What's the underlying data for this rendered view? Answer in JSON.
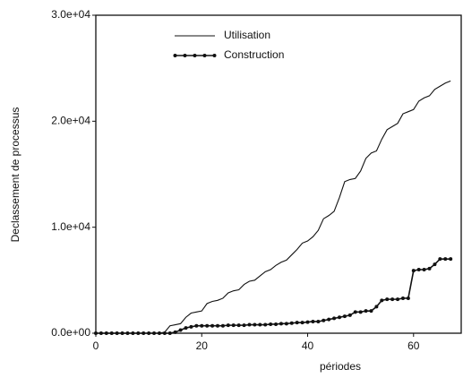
{
  "chart_data": {
    "type": "line",
    "xlabel": "périodes",
    "ylabel": "Declassement de processus",
    "x": [
      0,
      1,
      2,
      3,
      4,
      5,
      6,
      7,
      8,
      9,
      10,
      11,
      12,
      13,
      14,
      15,
      16,
      17,
      18,
      19,
      20,
      21,
      22,
      23,
      24,
      25,
      26,
      27,
      28,
      29,
      30,
      31,
      32,
      33,
      34,
      35,
      36,
      37,
      38,
      39,
      40,
      41,
      42,
      43,
      44,
      45,
      46,
      47,
      48,
      49,
      50,
      51,
      52,
      53,
      54,
      55,
      56,
      57,
      58,
      59,
      60,
      61,
      62,
      63,
      64,
      65,
      66,
      67
    ],
    "series": [
      {
        "name": "Utilisation",
        "color": "#111111",
        "markers": false,
        "values": [
          0,
          0,
          0,
          0,
          0,
          0,
          0,
          0,
          0,
          0,
          0,
          0,
          0,
          100,
          700,
          800,
          900,
          1500,
          1900,
          2000,
          2100,
          2800,
          3000,
          3100,
          3300,
          3800,
          4000,
          4100,
          4600,
          4900,
          5000,
          5400,
          5800,
          6000,
          6400,
          6700,
          6900,
          7400,
          7900,
          8500,
          8700,
          9100,
          9700,
          10800,
          11100,
          11500,
          12800,
          14300,
          14500,
          14600,
          15300,
          16500,
          17000,
          17200,
          18300,
          19200,
          19500,
          19800,
          20700,
          20900,
          21100,
          21900,
          22200,
          22400,
          23000,
          23300,
          23600,
          23800
        ]
      },
      {
        "name": "Construction",
        "color": "#111111",
        "markers": true,
        "values": [
          0,
          0,
          0,
          0,
          0,
          0,
          0,
          0,
          0,
          0,
          0,
          0,
          0,
          0,
          0,
          100,
          300,
          500,
          600,
          700,
          700,
          700,
          700,
          700,
          700,
          750,
          750,
          750,
          750,
          800,
          800,
          800,
          800,
          850,
          850,
          900,
          900,
          950,
          1000,
          1000,
          1050,
          1100,
          1100,
          1200,
          1300,
          1400,
          1500,
          1600,
          1700,
          2000,
          2000,
          2100,
          2100,
          2500,
          3100,
          3200,
          3200,
          3200,
          3300,
          3300,
          5900,
          6000,
          6000,
          6100,
          6500,
          7000,
          7000,
          7000
        ]
      }
    ],
    "xlim": [
      0,
      69
    ],
    "ylim": [
      0,
      30000
    ],
    "xticks": [
      0,
      20,
      40,
      60
    ],
    "yticks": [
      {
        "value": 0,
        "label": "0.0e+00"
      },
      {
        "value": 10000,
        "label": "1.0e+04"
      },
      {
        "value": 20000,
        "label": "2.0e+04"
      },
      {
        "value": 30000,
        "label": "3.0e+04"
      }
    ],
    "legend": "upper left",
    "grid": false
  }
}
